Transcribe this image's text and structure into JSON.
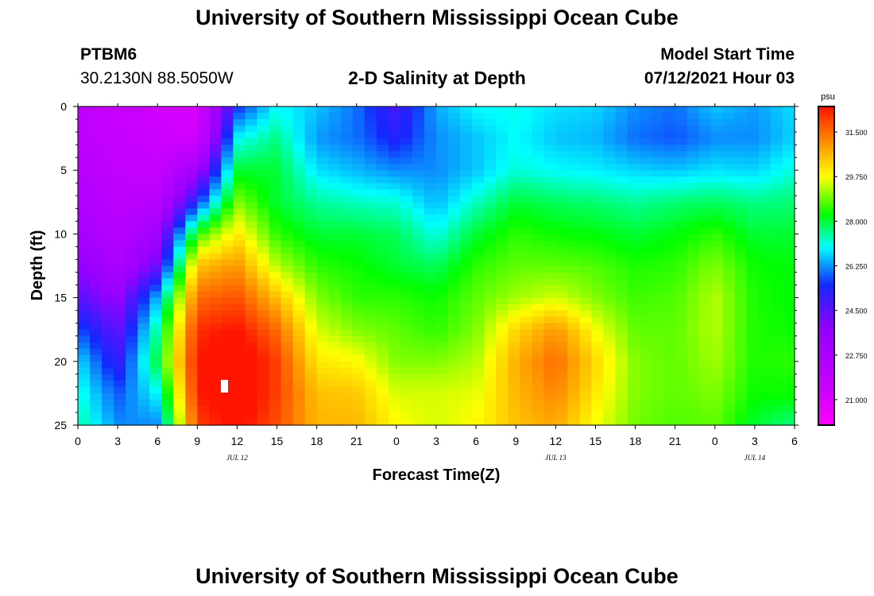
{
  "header": {
    "title": "University of Southern Mississippi Ocean Cube",
    "station_id": "PTBM6",
    "coordinates": "30.2130N  88.5050W",
    "model_start_label": "Model Start Time",
    "model_start_value": "07/12/2021 Hour 03"
  },
  "footer": {
    "title": "University of Southern Mississippi Ocean Cube"
  },
  "chart_data": {
    "type": "heatmap",
    "title": "2-D Salinity at Depth",
    "xlabel": "Forecast Time(Z)",
    "ylabel": "Depth (ft)",
    "x_ticks": [
      "0",
      "3",
      "6",
      "9",
      "12",
      "15",
      "18",
      "21",
      "0",
      "3",
      "6",
      "9",
      "12",
      "15",
      "18",
      "21",
      "0",
      "3",
      "6"
    ],
    "x_range_hours": [
      0,
      54
    ],
    "date_labels": [
      {
        "text": "JUL 12",
        "hour": 12
      },
      {
        "text": "JUL 13",
        "hour": 36
      },
      {
        "text": "JUL 14",
        "hour": 51
      }
    ],
    "y_ticks": [
      "0",
      "5",
      "10",
      "15",
      "20",
      "25"
    ],
    "ylim": [
      0,
      25
    ],
    "y_inverted": true,
    "colorbar": {
      "unit": "psu",
      "labels": [
        "31.500",
        "29.750",
        "28.000",
        "26.250",
        "24.500",
        "22.750",
        "21.000"
      ],
      "min": 20.0,
      "max": 32.5
    },
    "grid": {
      "note": "approximate salinity (psu) sampled every 3 hours (rows) by depth 0,2.5,...,25 ft (columns)",
      "hours": [
        0,
        3,
        6,
        9,
        12,
        15,
        18,
        21,
        24,
        27,
        30,
        33,
        36,
        39,
        42,
        45,
        48,
        51,
        54
      ],
      "depths": [
        0,
        2.5,
        5,
        7.5,
        10,
        12.5,
        15,
        17.5,
        20,
        22.5,
        25
      ],
      "values": [
        [
          22.0,
          22.0,
          22.2,
          22.6,
          23.0,
          23.8,
          24.6,
          25.8,
          26.8,
          27.2,
          27.5
        ],
        [
          21.5,
          21.6,
          21.8,
          22.0,
          22.3,
          22.8,
          23.6,
          24.4,
          25.0,
          25.8,
          26.2
        ],
        [
          21.3,
          21.4,
          21.6,
          22.2,
          23.3,
          24.3,
          26.5,
          27.5,
          28.0,
          27.0,
          26.2
        ],
        [
          21.0,
          21.2,
          23.2,
          25.5,
          28.5,
          30.5,
          31.5,
          32.2,
          32.5,
          32.4,
          32.0
        ],
        [
          25.5,
          27.0,
          28.0,
          29.0,
          30.0,
          31.0,
          31.8,
          32.5,
          33.0,
          33.0,
          32.7
        ],
        [
          27.0,
          27.6,
          28.0,
          28.0,
          28.5,
          29.3,
          30.5,
          31.5,
          32.0,
          32.0,
          31.8
        ],
        [
          26.6,
          26.3,
          26.8,
          27.5,
          28.0,
          28.5,
          29.0,
          29.5,
          30.0,
          30.5,
          30.6
        ],
        [
          26.0,
          26.0,
          26.5,
          27.3,
          28.0,
          28.3,
          28.5,
          29.0,
          29.8,
          30.4,
          30.6
        ],
        [
          24.8,
          25.3,
          26.2,
          27.2,
          27.8,
          28.0,
          28.5,
          28.8,
          29.0,
          29.5,
          29.8
        ],
        [
          26.4,
          26.2,
          26.2,
          26.5,
          27.1,
          27.8,
          28.3,
          28.5,
          29.0,
          29.5,
          29.5
        ],
        [
          27.0,
          26.6,
          26.6,
          27.3,
          28.0,
          28.5,
          28.8,
          29.0,
          29.3,
          29.6,
          29.8
        ],
        [
          27.1,
          27.0,
          27.2,
          28.0,
          28.5,
          28.8,
          29.2,
          30.2,
          30.7,
          30.6,
          30.5
        ],
        [
          26.8,
          26.6,
          27.0,
          27.8,
          28.3,
          28.8,
          29.5,
          31.0,
          31.5,
          31.2,
          30.8
        ],
        [
          26.7,
          26.5,
          26.9,
          27.7,
          28.2,
          28.7,
          29.0,
          29.7,
          30.2,
          30.0,
          29.7
        ],
        [
          26.2,
          26.0,
          26.7,
          27.5,
          28.0,
          28.4,
          28.6,
          28.8,
          29.0,
          29.0,
          28.9
        ],
        [
          26.0,
          25.8,
          26.6,
          27.7,
          28.2,
          28.5,
          28.7,
          28.8,
          28.8,
          28.8,
          28.7
        ],
        [
          26.6,
          26.2,
          26.8,
          27.8,
          28.5,
          29.0,
          29.3,
          29.3,
          29.2,
          29.0,
          28.8
        ],
        [
          26.3,
          26.2,
          26.7,
          27.6,
          28.0,
          28.3,
          28.4,
          28.4,
          28.4,
          28.3,
          28.0
        ],
        [
          26.8,
          26.7,
          27.2,
          27.7,
          28.0,
          28.2,
          28.2,
          28.3,
          28.5,
          28.3,
          27.6
        ]
      ]
    }
  }
}
